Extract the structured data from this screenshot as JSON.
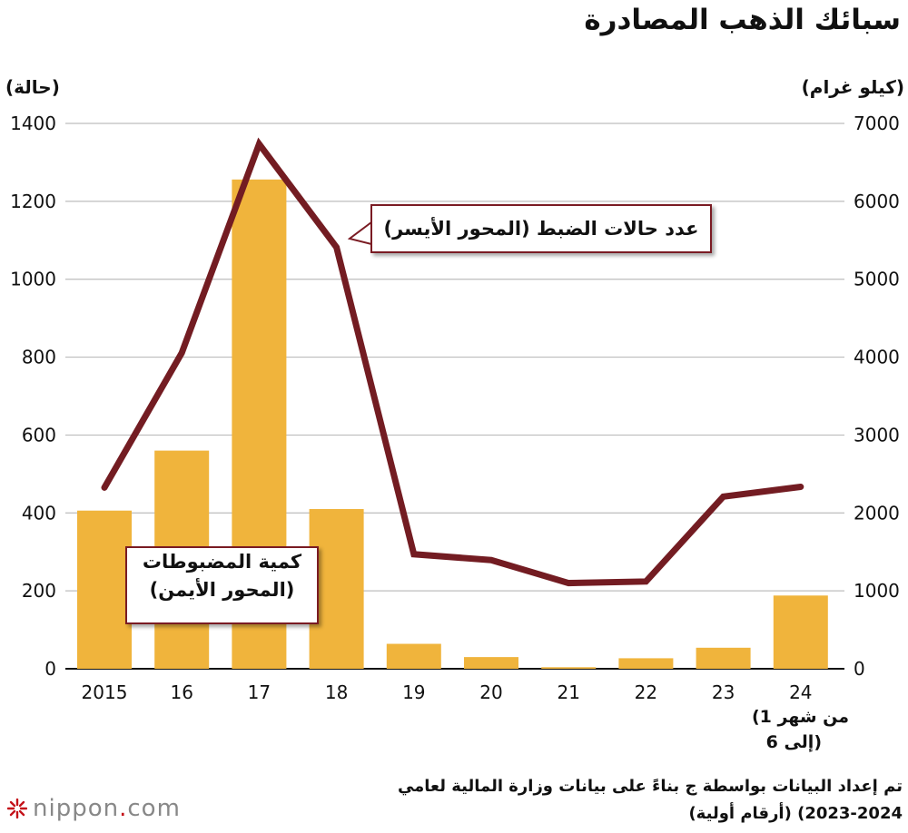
{
  "title": "سبائك الذهب المصادرة",
  "left_axis_unit": "(حالة)",
  "right_axis_unit": "(كيلو غرام)",
  "callout_line": "عدد حالات الضبط (المحور الأيسر)",
  "callout_bars_line1": "كمية المضبوطات",
  "callout_bars_line2": "(المحور الأيمن)",
  "last_category_note": [
    "(من شهر 1",
    "إلى 6)"
  ],
  "source_line1": "تم إعداد البيانات بواسطة ج بناءً على بيانات وزارة المالية لعامي",
  "source_line2": "2023-2024) (أرقام أولية)",
  "logo": {
    "name": "nippon",
    "dot": ".",
    "tld": "com"
  },
  "colors": {
    "bar": "#F0B43C",
    "line": "#731C22",
    "grid": "#bdbdbd"
  },
  "chart_data": {
    "type": "bar+line",
    "title": "سبائك الذهب المصادرة",
    "categories": [
      "2015",
      "16",
      "17",
      "18",
      "19",
      "20",
      "21",
      "22",
      "23",
      "24"
    ],
    "left_axis": {
      "label": "(حالة)",
      "min": 0,
      "max": 1400,
      "ticks": [
        0,
        200,
        400,
        600,
        800,
        1000,
        1200,
        1400
      ]
    },
    "right_axis": {
      "label": "(كيلو غرام)",
      "min": 0,
      "max": 7000,
      "ticks": [
        0,
        1000,
        2000,
        3000,
        4000,
        5000,
        6000,
        7000
      ]
    },
    "series": [
      {
        "name": "كمية المضبوطات (المحور الأيمن)",
        "kind": "bar",
        "axis": "right",
        "values": [
          2030,
          2800,
          6280,
          2050,
          320,
          150,
          20,
          135,
          270,
          940
        ]
      },
      {
        "name": "عدد حالات الضبط (المحور الأيسر)",
        "kind": "line",
        "axis": "left",
        "values": [
          465,
          811,
          1347,
          1082,
          294,
          279,
          220,
          224,
          442,
          467
        ]
      }
    ],
    "grid": true
  }
}
